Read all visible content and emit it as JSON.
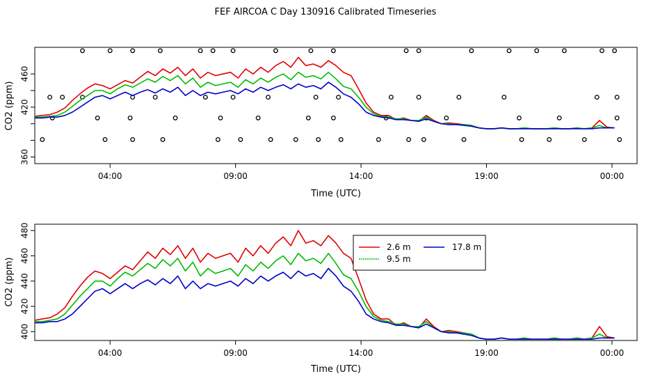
{
  "figure": {
    "title": "FEF AIRCOA C  Day 130916  Calibrated Timeseries"
  },
  "chart_data": [
    {
      "type": "line",
      "xlabel": "Time (UTC)",
      "ylabel": "CO2 (ppm)",
      "xlim": [
        0,
        24
      ],
      "ylim": [
        352,
        492
      ],
      "xticks": [
        3,
        8,
        13,
        18,
        23
      ],
      "xtick_labels": [
        "04:00",
        "09:00",
        "14:00",
        "19:00",
        "00:00"
      ],
      "yticks": [
        360,
        380,
        400,
        420,
        440,
        460
      ],
      "ytick_labels": [
        "360",
        "",
        "",
        "420",
        "",
        "460"
      ],
      "series": [
        {
          "name": "2.6 m",
          "color": "#e00000",
          "x": [
            0.0,
            0.3,
            0.6,
            0.9,
            1.2,
            1.5,
            1.8,
            2.1,
            2.4,
            2.7,
            3.0,
            3.3,
            3.6,
            3.9,
            4.2,
            4.5,
            4.8,
            5.1,
            5.4,
            5.7,
            6.0,
            6.3,
            6.6,
            6.9,
            7.2,
            7.5,
            7.8,
            8.1,
            8.4,
            8.7,
            9.0,
            9.3,
            9.6,
            9.9,
            10.2,
            10.5,
            10.8,
            11.1,
            11.4,
            11.7,
            12.0,
            12.3,
            12.6,
            12.9,
            13.2,
            13.5,
            13.8,
            14.1,
            14.4,
            14.7,
            15.0,
            15.3,
            15.6,
            15.9,
            16.2,
            16.5,
            16.8,
            17.1,
            17.4,
            17.7,
            18.0,
            18.3,
            18.6,
            18.9,
            19.2,
            19.5,
            19.8,
            20.1,
            20.4,
            20.7,
            21.0,
            21.3,
            21.6,
            21.9,
            22.2,
            22.5,
            22.8,
            23.1
          ],
          "values": [
            409,
            410,
            411,
            414,
            419,
            428,
            436,
            443,
            448,
            446,
            442,
            447,
            452,
            449,
            456,
            463,
            458,
            466,
            461,
            468,
            458,
            466,
            455,
            462,
            458,
            460,
            462,
            455,
            466,
            460,
            468,
            462,
            470,
            475,
            468,
            480,
            470,
            472,
            468,
            476,
            470,
            462,
            458,
            442,
            425,
            414,
            410,
            410,
            405,
            407,
            404,
            403,
            410,
            404,
            400,
            401,
            400,
            399,
            398,
            395,
            394,
            394,
            395,
            394,
            394,
            395,
            394,
            394,
            394,
            395,
            394,
            394,
            395,
            394,
            395,
            404,
            396,
            395
          ]
        },
        {
          "name": "9.5 m",
          "color": "#00bb00",
          "x": [
            0.0,
            0.3,
            0.6,
            0.9,
            1.2,
            1.5,
            1.8,
            2.1,
            2.4,
            2.7,
            3.0,
            3.3,
            3.6,
            3.9,
            4.2,
            4.5,
            4.8,
            5.1,
            5.4,
            5.7,
            6.0,
            6.3,
            6.6,
            6.9,
            7.2,
            7.5,
            7.8,
            8.1,
            8.4,
            8.7,
            9.0,
            9.3,
            9.6,
            9.9,
            10.2,
            10.5,
            10.8,
            11.1,
            11.4,
            11.7,
            12.0,
            12.3,
            12.6,
            12.9,
            13.2,
            13.5,
            13.8,
            14.1,
            14.4,
            14.7,
            15.0,
            15.3,
            15.6,
            15.9,
            16.2,
            16.5,
            16.8,
            17.1,
            17.4,
            17.7,
            18.0,
            18.3,
            18.6,
            18.9,
            19.2,
            19.5,
            19.8,
            20.1,
            20.4,
            20.7,
            21.0,
            21.3,
            21.6,
            21.9,
            22.2,
            22.5,
            22.8,
            23.1
          ],
          "values": [
            408,
            408,
            409,
            410,
            414,
            421,
            428,
            434,
            440,
            440,
            436,
            442,
            447,
            444,
            449,
            454,
            450,
            457,
            452,
            458,
            448,
            455,
            444,
            450,
            446,
            448,
            450,
            444,
            453,
            448,
            455,
            450,
            456,
            460,
            453,
            462,
            456,
            458,
            454,
            462,
            454,
            445,
            442,
            432,
            420,
            412,
            409,
            408,
            406,
            406,
            404,
            404,
            408,
            403,
            400,
            400,
            399,
            399,
            398,
            395,
            394,
            394,
            395,
            394,
            394,
            395,
            394,
            394,
            394,
            395,
            394,
            394,
            395,
            394,
            395,
            398,
            395,
            395
          ]
        },
        {
          "name": "17.8 m",
          "color": "#0000cc",
          "x": [
            0.0,
            0.3,
            0.6,
            0.9,
            1.2,
            1.5,
            1.8,
            2.1,
            2.4,
            2.7,
            3.0,
            3.3,
            3.6,
            3.9,
            4.2,
            4.5,
            4.8,
            5.1,
            5.4,
            5.7,
            6.0,
            6.3,
            6.6,
            6.9,
            7.2,
            7.5,
            7.8,
            8.1,
            8.4,
            8.7,
            9.0,
            9.3,
            9.6,
            9.9,
            10.2,
            10.5,
            10.8,
            11.1,
            11.4,
            11.7,
            12.0,
            12.3,
            12.6,
            12.9,
            13.2,
            13.5,
            13.8,
            14.1,
            14.4,
            14.7,
            15.0,
            15.3,
            15.6,
            15.9,
            16.2,
            16.5,
            16.8,
            17.1,
            17.4,
            17.7,
            18.0,
            18.3,
            18.6,
            18.9,
            19.2,
            19.5,
            19.8,
            20.1,
            20.4,
            20.7,
            21.0,
            21.3,
            21.6,
            21.9,
            22.2,
            22.5,
            22.8,
            23.1
          ],
          "values": [
            407,
            407,
            408,
            408,
            410,
            414,
            420,
            426,
            432,
            434,
            430,
            434,
            438,
            434,
            438,
            441,
            437,
            442,
            438,
            444,
            434,
            440,
            434,
            438,
            436,
            438,
            440,
            436,
            442,
            438,
            444,
            440,
            444,
            447,
            442,
            448,
            444,
            446,
            442,
            450,
            444,
            436,
            432,
            424,
            414,
            410,
            408,
            407,
            405,
            405,
            404,
            403,
            406,
            403,
            400,
            399,
            399,
            398,
            397,
            395,
            394,
            394,
            395,
            394,
            394,
            394,
            394,
            394,
            394,
            394,
            394,
            394,
            394,
            394,
            394,
            395,
            395,
            395
          ]
        }
      ],
      "scatter_points": {
        "x": [
          1.9,
          3.0,
          3.9,
          5.0,
          6.6,
          7.1,
          7.9,
          9.6,
          11.0,
          11.9,
          14.8,
          15.3,
          17.4,
          18.9,
          20.0,
          21.1,
          22.6,
          23.1,
          0.6,
          1.1,
          1.9,
          3.9,
          4.8,
          6.8,
          7.9,
          9.3,
          11.2,
          12.1,
          14.2,
          15.3,
          16.9,
          18.7,
          22.4,
          23.2,
          0.7,
          2.5,
          3.8,
          5.6,
          7.4,
          8.9,
          10.9,
          11.9,
          14.0,
          15.6,
          16.4,
          19.3,
          20.9,
          23.2,
          0.3,
          2.8,
          3.9,
          5.1,
          7.3,
          8.2,
          9.4,
          10.4,
          11.3,
          12.2,
          13.7,
          14.9,
          15.5,
          17.1,
          19.4,
          20.5,
          21.9,
          23.3
        ],
        "y": [
          488,
          488,
          488,
          488,
          488,
          488,
          488,
          488,
          488,
          488,
          488,
          488,
          488,
          488,
          488,
          488,
          488,
          488,
          432,
          432,
          432,
          432,
          432,
          432,
          432,
          432,
          432,
          432,
          432,
          432,
          432,
          432,
          432,
          432,
          407,
          407,
          407,
          407,
          407,
          407,
          407,
          407,
          407,
          407,
          407,
          407,
          407,
          407,
          381,
          381,
          381,
          381,
          381,
          381,
          381,
          381,
          381,
          381,
          381,
          381,
          381,
          381,
          381,
          381,
          381,
          381
        ]
      }
    },
    {
      "type": "line",
      "xlabel": "Time (UTC)",
      "ylabel": "CO2 (ppm)",
      "xlim": [
        0,
        24
      ],
      "ylim": [
        393,
        485
      ],
      "xticks": [
        3,
        8,
        13,
        18,
        23
      ],
      "xtick_labels": [
        "04:00",
        "09:00",
        "14:00",
        "19:00",
        "00:00"
      ],
      "yticks": [
        400,
        420,
        440,
        460,
        480
      ],
      "ytick_labels": [
        "400",
        "420",
        "440",
        "460",
        "480"
      ],
      "legend": {
        "position": "top-right",
        "entries": [
          "2.6 m",
          "17.8 m",
          "9.5 m"
        ]
      },
      "series_ref": "same as chart 1 series"
    }
  ]
}
